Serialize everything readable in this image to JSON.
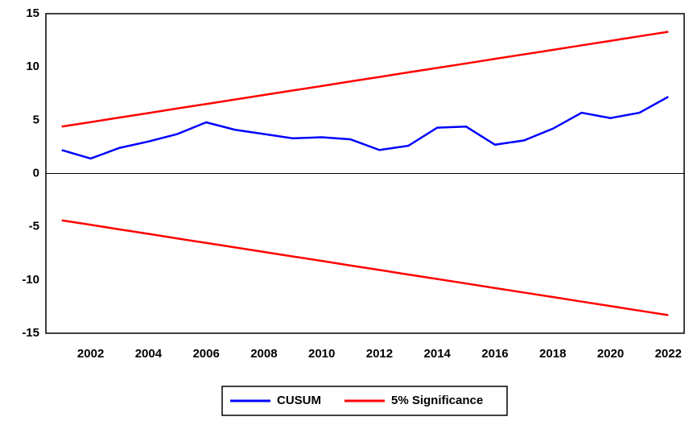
{
  "chart_data": {
    "type": "line",
    "x": [
      2001,
      2002,
      2003,
      2004,
      2005,
      2006,
      2007,
      2008,
      2009,
      2010,
      2011,
      2012,
      2013,
      2014,
      2015,
      2016,
      2017,
      2018,
      2019,
      2020,
      2021,
      2022
    ],
    "series": [
      {
        "name": "CUSUM",
        "color": "#0000ff",
        "values": [
          2.2,
          1.4,
          2.4,
          3.0,
          3.7,
          4.8,
          4.1,
          3.7,
          3.3,
          3.4,
          3.2,
          2.2,
          2.6,
          4.3,
          4.4,
          2.7,
          3.1,
          4.2,
          5.7,
          5.2,
          5.7,
          7.2
        ]
      }
    ],
    "bands": {
      "name": "5% Significance",
      "color": "#ff0000",
      "upper": [
        4.4,
        4.82,
        5.25,
        5.67,
        6.1,
        6.52,
        6.94,
        7.37,
        7.79,
        8.21,
        8.64,
        9.06,
        9.49,
        9.91,
        10.33,
        10.76,
        11.18,
        11.6,
        12.03,
        12.45,
        12.88,
        13.3
      ],
      "lower": [
        -4.4,
        -4.82,
        -5.25,
        -5.67,
        -6.1,
        -6.52,
        -6.94,
        -7.37,
        -7.79,
        -8.21,
        -8.64,
        -9.06,
        -9.49,
        -9.91,
        -10.33,
        -10.76,
        -11.18,
        -11.6,
        -12.03,
        -12.45,
        -12.88,
        -13.3
      ]
    },
    "xlim": [
      2000.45,
      2022.55
    ],
    "xticks": [
      2002,
      2004,
      2006,
      2008,
      2010,
      2012,
      2014,
      2016,
      2018,
      2020,
      2022
    ],
    "ylim": [
      -15,
      15
    ],
    "yticks": [
      -15,
      -10,
      -5,
      0,
      5,
      10,
      15
    ],
    "grid": true
  }
}
